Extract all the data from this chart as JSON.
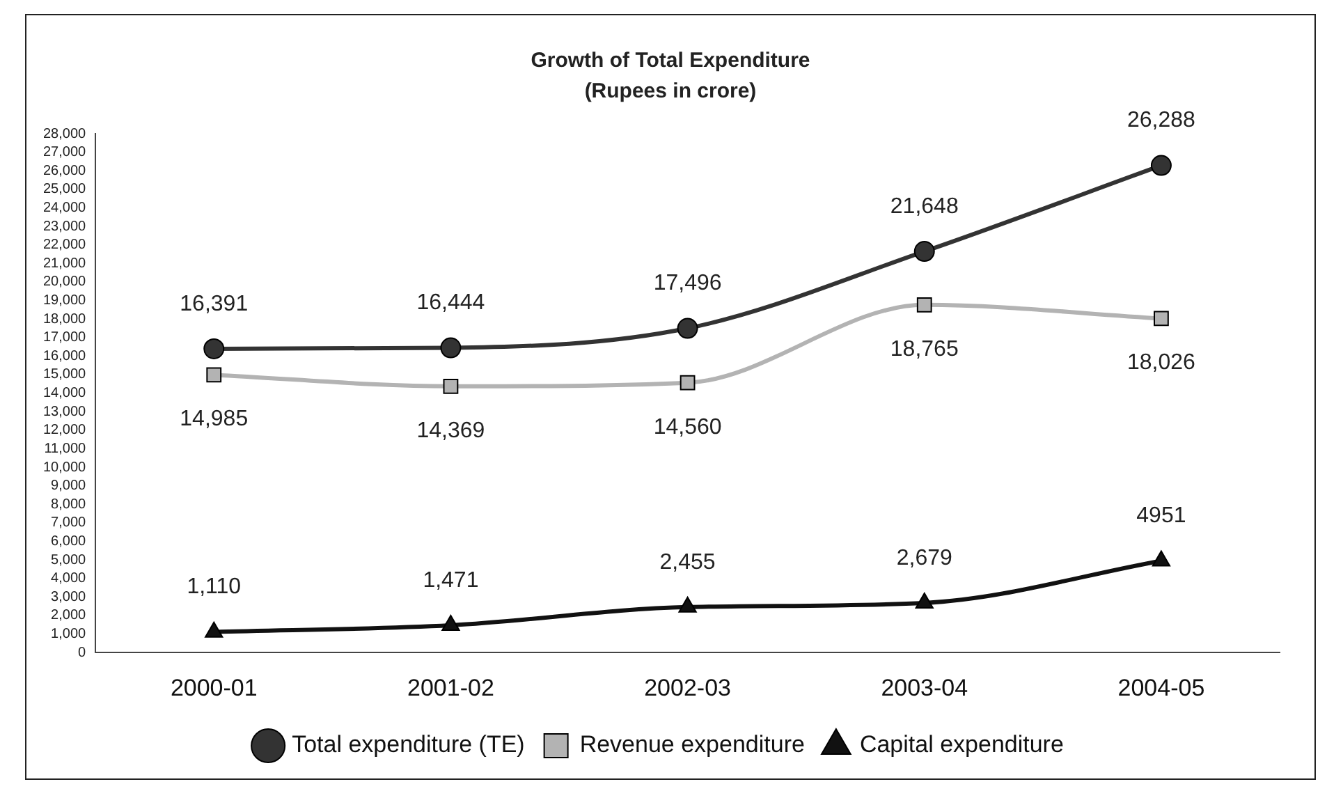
{
  "chart_data": {
    "type": "line",
    "title": "Growth of Total Expenditure",
    "subtitle": "(Rupees in crore)",
    "categories": [
      "2000-01",
      "2001-02",
      "2002-03",
      "2003-04",
      "2004-05"
    ],
    "series": [
      {
        "name": "Total expenditure (TE)",
        "color": "#333333",
        "marker": "circle",
        "values": [
          16391,
          16444,
          17496,
          21648,
          26288
        ],
        "value_labels": [
          "16,391",
          "16,444",
          "17,496",
          "21,648",
          "26,288"
        ]
      },
      {
        "name": "Revenue expenditure",
        "color": "#b3b3b3",
        "marker": "square",
        "values": [
          14985,
          14369,
          14560,
          18765,
          18026
        ],
        "value_labels": [
          "14,985",
          "14,369",
          "14,560",
          "18,765",
          "18,026"
        ]
      },
      {
        "name": "Capital expenditure",
        "color": "#111111",
        "marker": "triangle",
        "values": [
          1110,
          1471,
          2455,
          2679,
          4951
        ],
        "value_labels": [
          "1,110",
          "1,471",
          "2,455",
          "2,679",
          "4951"
        ]
      }
    ],
    "ylim": [
      0,
      28000
    ],
    "yticks": [
      {
        "value": 0,
        "label": "0"
      },
      {
        "value": 1000,
        "label": "1,000"
      },
      {
        "value": 2000,
        "label": "2,000"
      },
      {
        "value": 3000,
        "label": "3,000"
      },
      {
        "value": 4000,
        "label": "4,000"
      },
      {
        "value": 5000,
        "label": "5,000"
      },
      {
        "value": 6000,
        "label": "6,000"
      },
      {
        "value": 7000,
        "label": "7,000"
      },
      {
        "value": 8000,
        "label": "8,000"
      },
      {
        "value": 9000,
        "label": "9,000"
      },
      {
        "value": 10000,
        "label": "10,000"
      },
      {
        "value": 11000,
        "label": "11,000"
      },
      {
        "value": 12000,
        "label": "12,000"
      },
      {
        "value": 13000,
        "label": "13,000"
      },
      {
        "value": 14000,
        "label": "14,000"
      },
      {
        "value": 15000,
        "label": "15,000"
      },
      {
        "value": 16000,
        "label": "16,000"
      },
      {
        "value": 17000,
        "label": "17,000"
      },
      {
        "value": 18000,
        "label": "18,000"
      },
      {
        "value": 19000,
        "label": "19,000"
      },
      {
        "value": 20000,
        "label": "20,000"
      },
      {
        "value": 21000,
        "label": "21,000"
      },
      {
        "value": 22000,
        "label": "22,000"
      },
      {
        "value": 23000,
        "label": "23,000"
      },
      {
        "value": 24000,
        "label": "24,000"
      },
      {
        "value": 25000,
        "label": "25,000"
      },
      {
        "value": 26000,
        "label": "26,000"
      },
      {
        "value": 27000,
        "label": "27,000"
      },
      {
        "value": 28000,
        "label": "28,000"
      }
    ],
    "grid": false,
    "legend": "bottom",
    "line_style": "solid"
  }
}
